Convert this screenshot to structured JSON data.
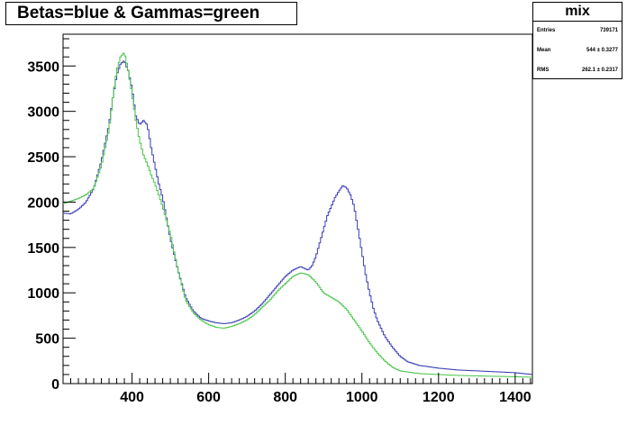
{
  "chart_data": {
    "type": "line",
    "title": "Betas=blue & Gammas=green",
    "xlim": [
      220,
      1445
    ],
    "ylim": [
      0,
      3850
    ],
    "x_ticks": [
      400,
      600,
      800,
      1000,
      1200,
      1400
    ],
    "y_ticks": [
      500,
      1000,
      1500,
      2000,
      2500,
      3000,
      3500
    ],
    "grid": false,
    "series": [
      {
        "color": "#3a3ab8",
        "x": [
          220,
          240,
          260,
          280,
          300,
          320,
          340,
          350,
          360,
          370,
          380,
          385,
          390,
          400,
          410,
          420,
          430,
          440,
          450,
          460,
          470,
          480,
          500,
          520,
          540,
          560,
          580,
          600,
          620,
          640,
          660,
          680,
          700,
          720,
          740,
          760,
          780,
          800,
          820,
          840,
          860,
          870,
          880,
          890,
          900,
          910,
          920,
          930,
          940,
          950,
          960,
          970,
          980,
          990,
          1000,
          1010,
          1020,
          1030,
          1040,
          1060,
          1080,
          1100,
          1120,
          1150,
          1200,
          1250,
          1300,
          1350,
          1400,
          1445
        ],
        "y": [
          1880,
          1870,
          1920,
          2000,
          2150,
          2450,
          2850,
          3150,
          3400,
          3520,
          3560,
          3500,
          3450,
          3250,
          2950,
          2850,
          2900,
          2850,
          2600,
          2400,
          2200,
          2050,
          1600,
          1250,
          950,
          800,
          720,
          690,
          670,
          660,
          670,
          700,
          740,
          800,
          880,
          980,
          1080,
          1180,
          1250,
          1290,
          1250,
          1300,
          1400,
          1550,
          1700,
          1850,
          1950,
          2050,
          2120,
          2180,
          2160,
          2080,
          1950,
          1700,
          1450,
          1200,
          1000,
          830,
          700,
          520,
          400,
          300,
          240,
          200,
          170,
          150,
          140,
          130,
          120,
          100
        ]
      },
      {
        "color": "#4ac44a",
        "x": [
          220,
          240,
          260,
          280,
          300,
          320,
          340,
          350,
          360,
          370,
          380,
          385,
          390,
          400,
          410,
          420,
          430,
          440,
          450,
          460,
          470,
          480,
          500,
          520,
          540,
          560,
          580,
          600,
          620,
          640,
          660,
          680,
          700,
          720,
          740,
          760,
          780,
          800,
          820,
          840,
          860,
          880,
          900,
          920,
          940,
          960,
          980,
          1000,
          1020,
          1040,
          1060,
          1080,
          1100,
          1150,
          1200,
          1250,
          1300,
          1350,
          1400,
          1445
        ],
        "y": [
          1980,
          2010,
          2040,
          2080,
          2150,
          2400,
          2800,
          3150,
          3450,
          3600,
          3650,
          3550,
          3450,
          3200,
          2900,
          2680,
          2520,
          2420,
          2300,
          2200,
          2080,
          1950,
          1650,
          1250,
          920,
          780,
          700,
          650,
          620,
          610,
          630,
          660,
          700,
          760,
          840,
          920,
          1020,
          1100,
          1180,
          1220,
          1200,
          1120,
          1000,
          950,
          900,
          820,
          700,
          580,
          450,
          340,
          250,
          180,
          140,
          110,
          100,
          90,
          85,
          80,
          75,
          70
        ]
      }
    ]
  },
  "stats_box": {
    "name": "mix",
    "rows": [
      {
        "label": "Entries",
        "value": "739171"
      },
      {
        "label": "Mean",
        "value": "544  ± 0.3277"
      },
      {
        "label": "RMS",
        "value": "262.1  ± 0.2317"
      }
    ]
  }
}
